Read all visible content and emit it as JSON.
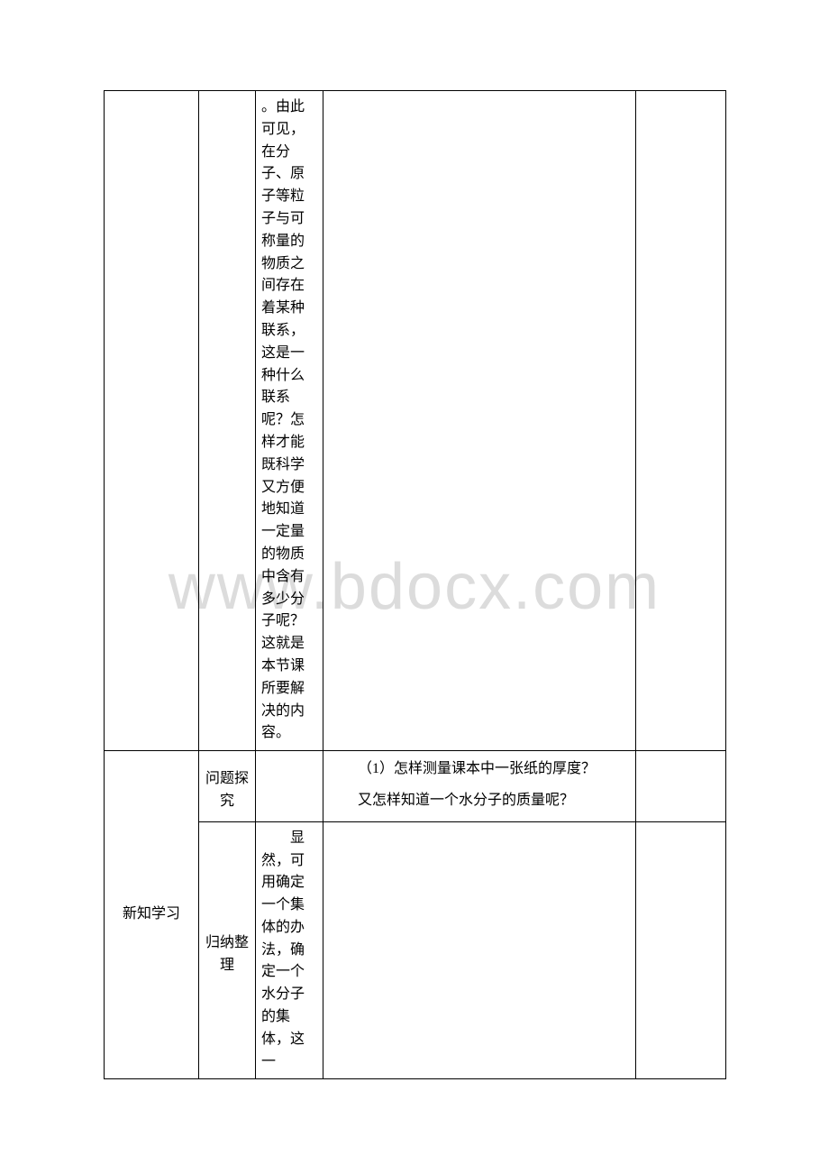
{
  "watermark": "www.bdocx.com",
  "row1": {
    "col3_text": "。由此可见，在分子、原子等粒子与可称量的物质之间存在着某种联系，这是一种什么联系呢？怎样才能既科学又方便地知道一定量的物质中含有多少分子呢？这就是本节课所要解决的内容。"
  },
  "row2": {
    "col2_label": "问题探究",
    "q1": "（1）怎样测量课本中一张纸的厚度？",
    "q2": "又怎样知道一个水分子的质量呢？"
  },
  "row3": {
    "col1_label": "新知学习",
    "col2_label": "归纳整理",
    "col3_text": "显然，可用确定一个集体的办法，确定一个水分子的集体，这一"
  }
}
